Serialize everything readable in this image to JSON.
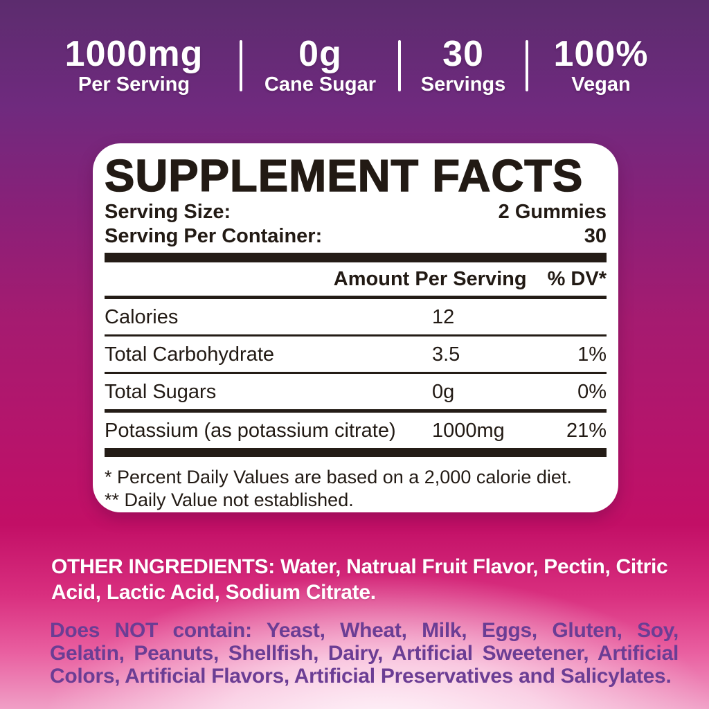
{
  "header": {
    "stats": [
      {
        "value": "1000mg",
        "label": "Per Serving"
      },
      {
        "value": "0g",
        "label": "Cane Sugar"
      },
      {
        "value": "30",
        "label": "Servings"
      },
      {
        "value": "100%",
        "label": "Vegan"
      }
    ]
  },
  "panel": {
    "title": "SUPPLEMENT FACTS",
    "serving_rows": [
      {
        "label": "Serving Size:",
        "value": "2 Gummies"
      },
      {
        "label": "Serving Per Container:",
        "value": "30"
      }
    ],
    "columns": {
      "amount": "Amount Per Serving",
      "dv": "% DV*"
    },
    "rows": [
      {
        "name": "Calories",
        "amount": "12",
        "dv": ""
      },
      {
        "name": "Total Carbohydrate",
        "amount": "3.5",
        "dv": "1%"
      },
      {
        "name": "Total Sugars",
        "amount": "0g",
        "dv": "0%"
      },
      {
        "name": "Potassium (as potassium citrate)",
        "amount": "1000mg",
        "dv": "21%"
      }
    ],
    "footnotes": [
      "* Percent Daily Values are based on a 2,000 calorie diet.",
      "** Daily Value not established."
    ]
  },
  "other_ingredients": {
    "heading": "OTHER INGREDIENTS:",
    "text": " Water, Natrual Fruit Flavor, Pectin, Citric Acid, Lactic Acid, Sodium Citrate."
  },
  "allergen": {
    "heading": "Does NOT contain:",
    "text": " Yeast, Wheat, Milk, Eggs, Gluten, Soy, Gelatin, Peanuts, Shellfish, Dairy, Artificial Sweetener, Artificial Colors, Artificial Flavors, Artificial Preservatives and Salicylates."
  },
  "colors": {
    "background_top_purple": "#5c2c6e",
    "background_mid_magenta": "#a51b70",
    "background_bottom_pink": "#f09fc6",
    "panel_background": "#ffffff",
    "panel_text": "#221a14",
    "header_text": "#ffffff",
    "allergen_text": "#6b3d94"
  }
}
